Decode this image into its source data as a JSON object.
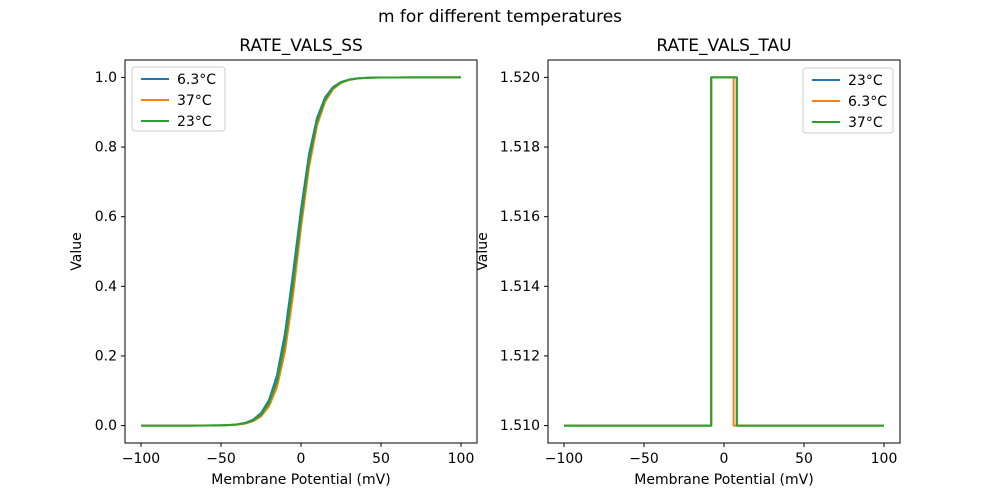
{
  "figure": {
    "suptitle": "m for different temperatures",
    "background": "#ffffff",
    "text_color": "#000000",
    "spine_color": "#000000",
    "legend_border_color": "#cccccc",
    "palette": {
      "blue": "#1f77b4",
      "orange": "#ff7f0e",
      "green": "#2ca02c"
    }
  },
  "chart_data": [
    {
      "type": "line",
      "title": "RATE_VALS_SS",
      "xlabel": "Membrane Potential (mV)",
      "ylabel": "Value",
      "grid": false,
      "xlim": [
        -110,
        110
      ],
      "ylim": [
        -0.05,
        1.05
      ],
      "xticks": [
        -100,
        -50,
        0,
        50,
        100
      ],
      "xtick_labels": [
        "−100",
        "−50",
        "0",
        "50",
        "100"
      ],
      "yticks": [
        0.0,
        0.2,
        0.4,
        0.6,
        0.8,
        1.0
      ],
      "ytick_labels": [
        "0.0",
        "0.2",
        "0.4",
        "0.6",
        "0.8",
        "1.0"
      ],
      "legend": {
        "position": "upper-left",
        "entries": [
          {
            "label": "6.3°C",
            "color": "#1f77b4"
          },
          {
            "label": "37°C",
            "color": "#ff7f0e"
          },
          {
            "label": "23°C",
            "color": "#2ca02c"
          }
        ]
      },
      "x": [
        -100,
        -90,
        -80,
        -70,
        -60,
        -50,
        -45,
        -40,
        -35,
        -30,
        -25,
        -20,
        -15,
        -10,
        -5,
        0,
        5,
        10,
        15,
        20,
        25,
        30,
        35,
        40,
        45,
        50,
        60,
        70,
        80,
        90,
        100
      ],
      "series": [
        {
          "name": "6.3°C",
          "color": "#1f77b4",
          "y": [
            0,
            0,
            0,
            0,
            0.0002,
            0.0008,
            0.0017,
            0.0036,
            0.0077,
            0.0167,
            0.0357,
            0.0733,
            0.1444,
            0.2653,
            0.4372,
            0.6206,
            0.7789,
            0.8836,
            0.9419,
            0.9722,
            0.9869,
            0.9939,
            0.9972,
            0.9987,
            0.9994,
            0.9997,
            0.9999,
            1,
            1,
            1,
            1
          ]
        },
        {
          "name": "37°C",
          "color": "#ff7f0e",
          "y": [
            0,
            0,
            0,
            0,
            0.0001,
            0.0006,
            0.0012,
            0.0026,
            0.0057,
            0.0123,
            0.0264,
            0.0552,
            0.111,
            0.2132,
            0.3735,
            0.5688,
            0.7416,
            0.8612,
            0.9299,
            0.9661,
            0.9841,
            0.9926,
            0.9966,
            0.9984,
            0.9993,
            0.9997,
            0.9999,
            1,
            1,
            1,
            1
          ]
        },
        {
          "name": "23°C",
          "color": "#2ca02c",
          "y": [
            0,
            0,
            0,
            0,
            0.0001,
            0.0007,
            0.0014,
            0.0031,
            0.0066,
            0.0144,
            0.0307,
            0.0639,
            0.1273,
            0.2393,
            0.4052,
            0.5948,
            0.7607,
            0.8727,
            0.9361,
            0.9693,
            0.9856,
            0.9934,
            0.9969,
            0.9986,
            0.9993,
            0.9997,
            0.9999,
            1,
            1,
            1,
            1
          ]
        }
      ]
    },
    {
      "type": "line",
      "title": "RATE_VALS_TAU",
      "xlabel": "Membrane Potential (mV)",
      "ylabel": "Value",
      "grid": false,
      "xlim": [
        -110,
        110
      ],
      "ylim": [
        1.5095,
        1.5205
      ],
      "xticks": [
        -100,
        -50,
        0,
        50,
        100
      ],
      "xtick_labels": [
        "−100",
        "−50",
        "0",
        "50",
        "100"
      ],
      "yticks": [
        1.51,
        1.512,
        1.514,
        1.516,
        1.518,
        1.52
      ],
      "ytick_labels": [
        "1.510",
        "1.512",
        "1.514",
        "1.516",
        "1.518",
        "1.520"
      ],
      "legend": {
        "position": "upper-right",
        "entries": [
          {
            "label": "23°C",
            "color": "#1f77b4"
          },
          {
            "label": "6.3°C",
            "color": "#ff7f0e"
          },
          {
            "label": "37°C",
            "color": "#2ca02c"
          }
        ]
      },
      "series": [
        {
          "name": "23°C",
          "color": "#1f77b4",
          "x": [
            -100,
            -8,
            -8,
            8,
            8,
            100
          ],
          "y": [
            1.51,
            1.51,
            1.52,
            1.52,
            1.51,
            1.51
          ]
        },
        {
          "name": "6.3°C",
          "color": "#ff7f0e",
          "x": [
            -100,
            -8,
            -8,
            6,
            6,
            100
          ],
          "y": [
            1.51,
            1.51,
            1.52,
            1.52,
            1.51,
            1.51
          ]
        },
        {
          "name": "37°C",
          "color": "#2ca02c",
          "x": [
            -100,
            -8,
            -8,
            8,
            8,
            100
          ],
          "y": [
            1.51,
            1.51,
            1.52,
            1.52,
            1.51,
            1.51
          ]
        }
      ]
    }
  ]
}
